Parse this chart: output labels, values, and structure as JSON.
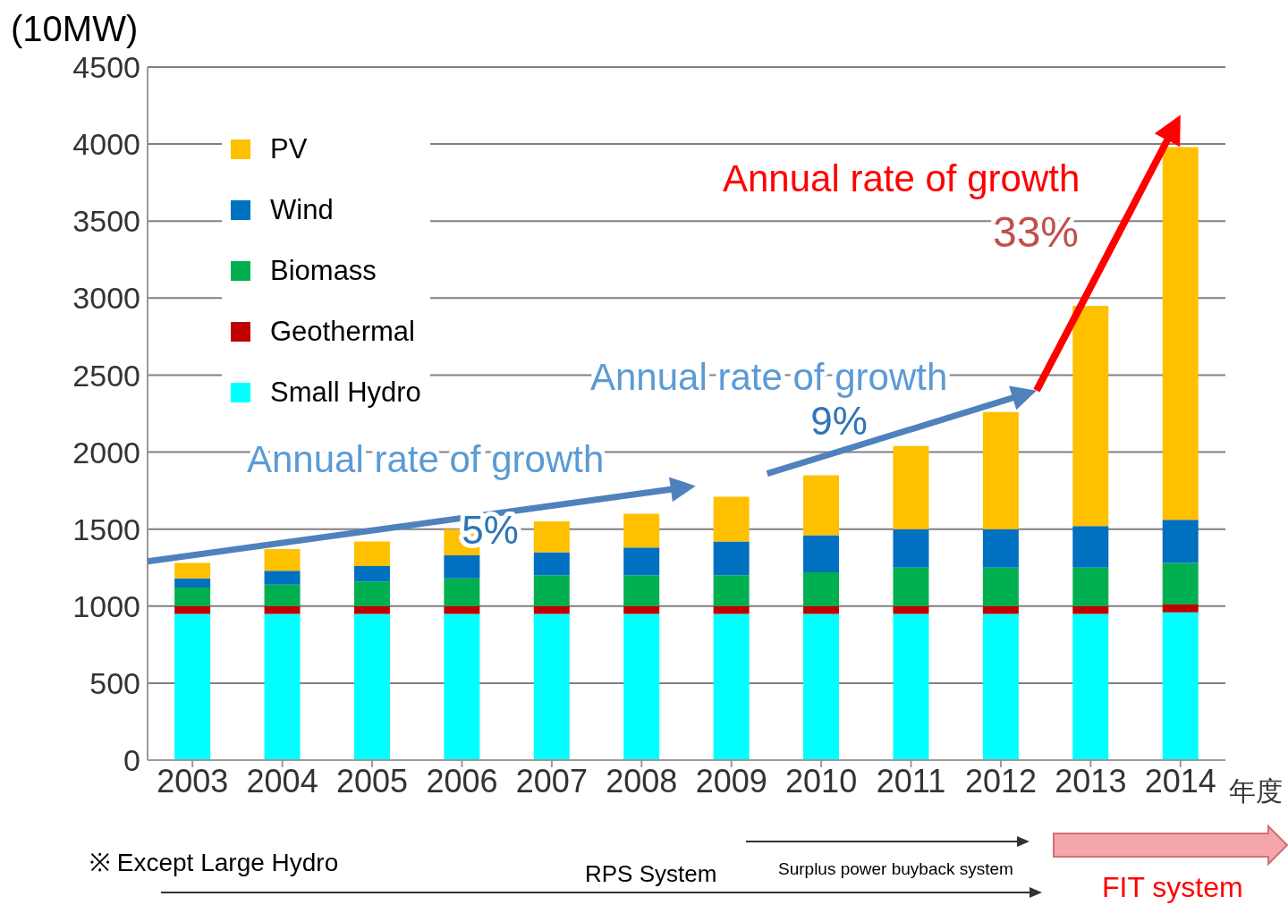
{
  "chart_data": {
    "type": "bar",
    "stacked": true,
    "xlabel": "年度",
    "ylabel": "(10MW)",
    "categories": [
      "2003",
      "2004",
      "2005",
      "2006",
      "2007",
      "2008",
      "2009",
      "2010",
      "2011",
      "2012",
      "2013",
      "2014"
    ],
    "series": [
      {
        "name": "Small Hydro",
        "color": "#00ffff",
        "values": [
          950,
          950,
          950,
          950,
          950,
          950,
          950,
          950,
          950,
          950,
          950,
          960
        ]
      },
      {
        "name": "Geothermal",
        "color": "#c00000",
        "values": [
          50,
          50,
          50,
          50,
          50,
          50,
          50,
          50,
          50,
          50,
          50,
          50
        ]
      },
      {
        "name": "Biomass",
        "color": "#00b050",
        "values": [
          120,
          140,
          160,
          180,
          200,
          200,
          200,
          220,
          250,
          250,
          250,
          270
        ]
      },
      {
        "name": "Wind",
        "color": "#0070c0",
        "values": [
          60,
          90,
          100,
          150,
          150,
          180,
          220,
          240,
          250,
          250,
          270,
          280
        ]
      },
      {
        "name": "PV",
        "color": "#ffc000",
        "values": [
          100,
          140,
          160,
          170,
          200,
          220,
          290,
          390,
          540,
          760,
          1430,
          2420
        ]
      }
    ],
    "ylim": [
      0,
      4500
    ],
    "yticks": [
      0,
      500,
      1000,
      1500,
      2000,
      2500,
      3000,
      3500,
      4000,
      4500
    ],
    "grid": "y",
    "legend": "top left",
    "annotations": [
      "Annual rate of growth",
      "5%",
      "Annual rate of growth",
      "9%",
      "Annual rate of growth",
      "33%",
      "※ Except Large Hydro",
      "RPS System",
      "Surplus power buyback system",
      "FIT system"
    ]
  }
}
